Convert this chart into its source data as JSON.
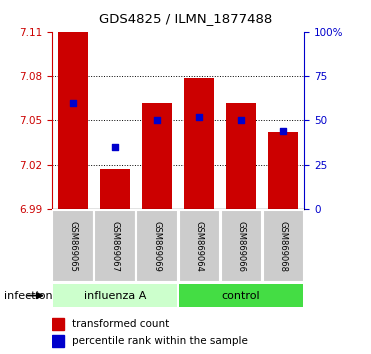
{
  "title": "GDS4825 / ILMN_1877488",
  "samples": [
    "GSM869065",
    "GSM869067",
    "GSM869069",
    "GSM869064",
    "GSM869066",
    "GSM869068"
  ],
  "bar_bottom": 6.99,
  "transformed_counts": [
    7.11,
    7.017,
    7.062,
    7.079,
    7.062,
    7.042
  ],
  "percentile_ranks": [
    60,
    35,
    50,
    52,
    50,
    44
  ],
  "bar_color": "#cc0000",
  "dot_color": "#0000cc",
  "ylim_left": [
    6.99,
    7.11
  ],
  "ylim_right": [
    0,
    100
  ],
  "yticks_left": [
    6.99,
    7.02,
    7.05,
    7.08,
    7.11
  ],
  "yticks_right": [
    0,
    25,
    50,
    75,
    100
  ],
  "bg_color": "#ffffff",
  "tick_area_color": "#cccccc",
  "influenza_color": "#ccffcc",
  "control_color": "#44dd44",
  "legend_transformed": "transformed count",
  "legend_percentile": "percentile rank within the sample",
  "bar_width": 0.7,
  "figsize": [
    3.71,
    3.54
  ],
  "dpi": 100
}
